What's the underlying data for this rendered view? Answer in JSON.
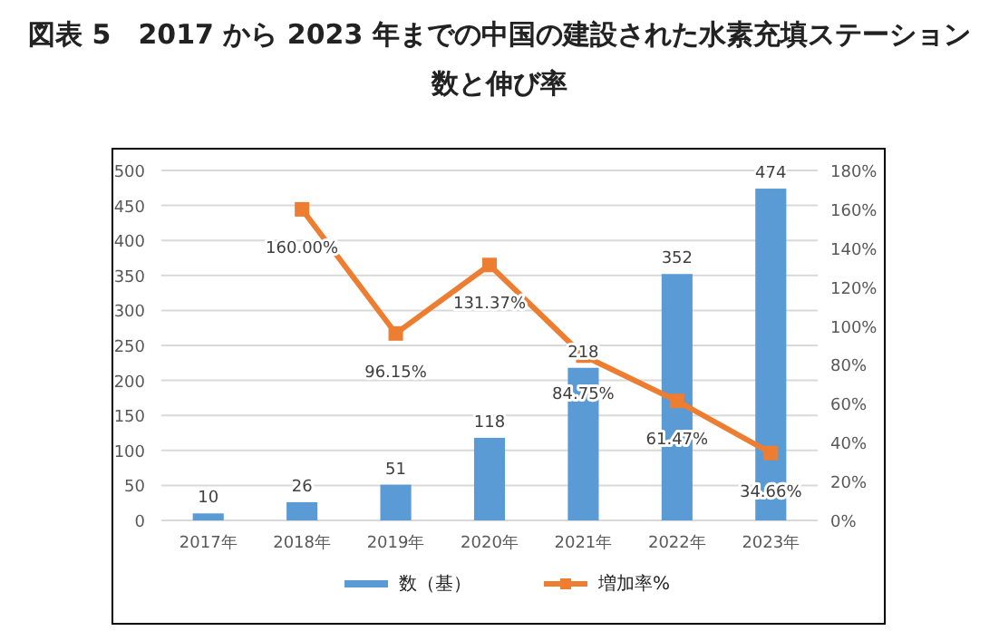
{
  "chart_data": {
    "type": "bar",
    "title": "図表 5　2017 から 2023 年までの中国の建設された水素充填ステーション数と伸び率",
    "categories": [
      "2017年",
      "2018年",
      "2019年",
      "2020年",
      "2021年",
      "2022年",
      "2023年"
    ],
    "series": [
      {
        "name": "数（基）",
        "color": "#5b9bd5",
        "values": [
          10,
          26,
          51,
          118,
          218,
          352,
          474
        ],
        "value_labels": [
          "10",
          "26",
          "51",
          "118",
          "218",
          "352",
          "474"
        ]
      },
      {
        "name": "増加率%",
        "type": "line",
        "axis": "y2",
        "marker": "square",
        "color": "#ed7d31",
        "values": [
          null,
          160,
          96.15,
          131.37,
          84.75,
          61.47,
          34.66
        ],
        "value_labels": [
          null,
          "160.00%",
          "96.15%",
          "131.37%",
          "84.75%",
          "61.47%",
          "34.66%"
        ]
      }
    ],
    "ylim": [
      0,
      500
    ],
    "yticks": [
      0,
      50,
      100,
      150,
      200,
      250,
      300,
      350,
      400,
      450,
      500
    ],
    "y2lim": [
      0,
      180
    ],
    "y2ticks": [
      {
        "value": 0,
        "label": "0%"
      },
      {
        "value": 20,
        "label": "20%"
      },
      {
        "value": 40,
        "label": "40%"
      },
      {
        "value": 60,
        "label": "60%"
      },
      {
        "value": 80,
        "label": "80%"
      },
      {
        "value": 100,
        "label": "100%"
      },
      {
        "value": 120,
        "label": "120%"
      },
      {
        "value": 140,
        "label": "140%"
      },
      {
        "value": 160,
        "label": "160%"
      },
      {
        "value": 180,
        "label": "180%"
      }
    ],
    "grid": "y",
    "legend": "bottom"
  }
}
